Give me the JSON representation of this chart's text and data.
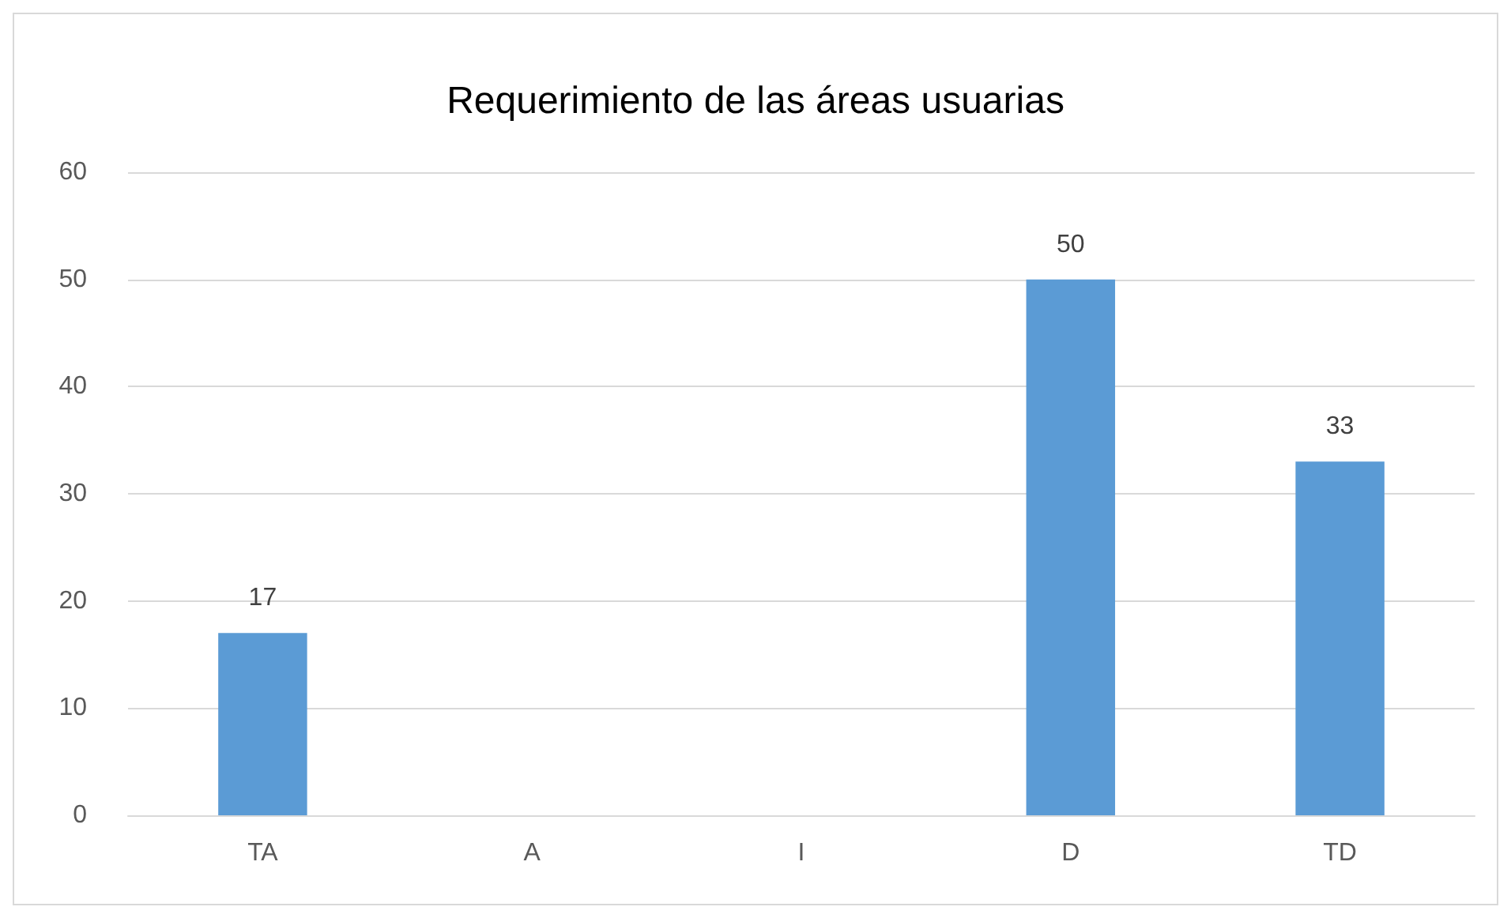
{
  "chart_data": {
    "type": "bar",
    "title": "Requerimiento de las áreas usuarias",
    "categories": [
      "TA",
      "A",
      "I",
      "D",
      "TD"
    ],
    "values": [
      17,
      null,
      null,
      50,
      33
    ],
    "color": "#5b9bd5",
    "ylim": [
      0,
      60
    ],
    "yticks": [
      0,
      10,
      20,
      30,
      40,
      50,
      60
    ],
    "grid": "y",
    "data_labels": true
  }
}
